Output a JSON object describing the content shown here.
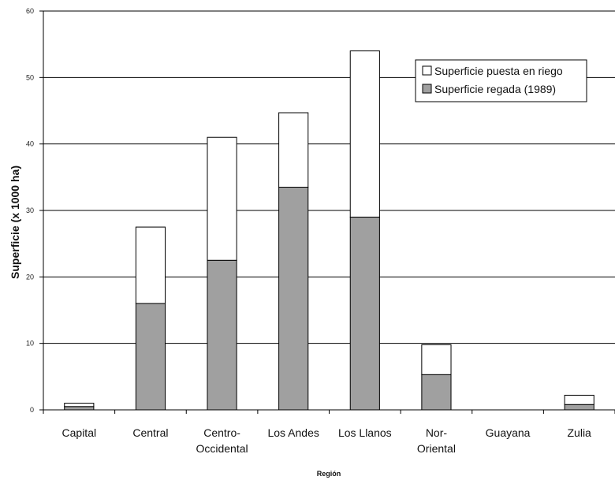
{
  "chart_data": {
    "type": "bar",
    "stacked": true,
    "xlabel": "Región",
    "ylabel": "Superficie (x 1000 ha)",
    "ylim": [
      0,
      60
    ],
    "yticks": [
      0,
      10,
      20,
      30,
      40,
      50,
      60
    ],
    "grid": true,
    "legend_position": "top-right",
    "categories": [
      [
        "Capital"
      ],
      [
        "Central"
      ],
      [
        "Centro-",
        "Occidental"
      ],
      [
        "Los Andes"
      ],
      [
        "Los Llanos"
      ],
      [
        "Nor-",
        "Oriental"
      ],
      [
        "Guayana"
      ],
      [
        "Zulia"
      ]
    ],
    "series": [
      {
        "name": "Superficie regada (1989)",
        "color": "#a0a0a0",
        "values": [
          0.5,
          16,
          22.5,
          33.5,
          29,
          5.3,
          0,
          0.8
        ]
      },
      {
        "name": "Superficie puesta en riego",
        "color": "#ffffff",
        "values": [
          0.5,
          11.5,
          18.5,
          11.2,
          25,
          4.5,
          0,
          1.4
        ]
      }
    ],
    "legend_order": [
      1,
      0
    ]
  }
}
